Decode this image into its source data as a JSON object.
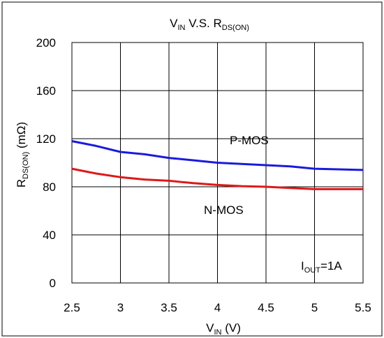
{
  "chart_data": {
    "type": "line",
    "title": {
      "main": "V",
      "main_sub": "IN",
      "middle": " V.S. R",
      "tail_sub": "DS(ON)"
    },
    "xlabel": {
      "main": "V",
      "sub": "IN",
      "tail": " (V)"
    },
    "ylabel": {
      "main": "R",
      "sub": "DS(ON)",
      "tail": " (mΩ)"
    },
    "x_ticks": [
      "2.5",
      "3",
      "3.5",
      "4",
      "4.5",
      "5",
      "5.5"
    ],
    "y_ticks": [
      "0",
      "40",
      "80",
      "120",
      "160",
      "200"
    ],
    "xlim": [
      2.5,
      5.5
    ],
    "ylim": [
      0,
      200
    ],
    "grid": true,
    "annotation": {
      "main": "I",
      "sub": "OUT",
      "tail": "=1A"
    },
    "series": [
      {
        "name": "P-MOS",
        "color": "#1a1adf",
        "x": [
          2.5,
          2.75,
          3.0,
          3.25,
          3.5,
          3.75,
          4.0,
          4.25,
          4.5,
          4.75,
          5.0,
          5.25,
          5.5
        ],
        "y": [
          118,
          114,
          109,
          107,
          104,
          102,
          100,
          99,
          98,
          97,
          95,
          94.5,
          94
        ]
      },
      {
        "name": "N-MOS",
        "color": "#e01818",
        "x": [
          2.5,
          2.75,
          3.0,
          3.25,
          3.5,
          3.75,
          4.0,
          4.25,
          4.5,
          4.75,
          5.0,
          5.25,
          5.5
        ],
        "y": [
          95,
          91,
          88,
          86,
          85,
          83,
          81.5,
          80.5,
          80,
          79,
          78,
          78,
          78
        ]
      }
    ]
  }
}
